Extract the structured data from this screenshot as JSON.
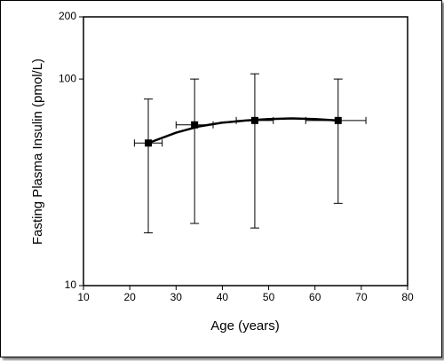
{
  "chart_data": {
    "type": "errorbar",
    "xlabel": "Age (years)",
    "ylabel": "Fasting Plasma Insulin (pmol/L)",
    "xlim": [
      10,
      80
    ],
    "xticks": [
      10,
      20,
      30,
      40,
      50,
      60,
      70,
      80
    ],
    "ylim": [
      10,
      200
    ],
    "yticks": [
      10,
      100,
      200
    ],
    "log_y": true,
    "color": "#000000",
    "series": [
      {
        "x": [
          24,
          34,
          47,
          65
        ],
        "values": [
          49,
          60,
          63,
          63
        ],
        "y_low": [
          18,
          20,
          19,
          25
        ],
        "y_high": [
          80,
          100,
          106,
          100
        ],
        "x_low": [
          21,
          30,
          43,
          58
        ],
        "x_high": [
          27,
          38,
          51,
          71
        ]
      }
    ],
    "curve": {
      "x": [
        24,
        30,
        35,
        40,
        45,
        50,
        55,
        60,
        65
      ],
      "values": [
        49,
        55,
        59,
        61.5,
        63,
        64,
        64.5,
        64,
        63
      ]
    }
  }
}
